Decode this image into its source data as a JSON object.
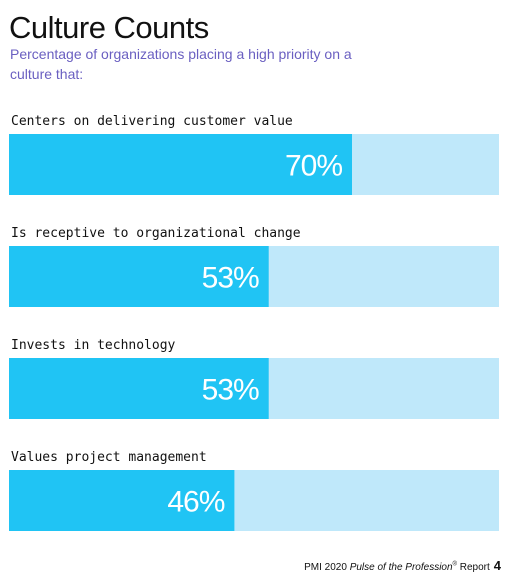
{
  "title": "Culture Counts",
  "subtitle": "Percentage of organizations placing a high priority on a culture that:",
  "colors": {
    "bar_fill": "#20c4f4",
    "bar_track": "#bfe8fa",
    "subtitle": "#6a5fc1",
    "value_text": "#ffffff"
  },
  "chart_data": {
    "type": "bar",
    "orientation": "horizontal",
    "title": "Culture Counts",
    "subtitle": "Percentage of organizations placing a high priority on a culture that:",
    "categories": [
      "Centers on delivering customer value",
      "Is receptive to organizational change",
      "Invests in technology",
      "Values project management"
    ],
    "values": [
      70,
      53,
      53,
      46
    ],
    "value_labels": [
      "70%",
      "53%",
      "53%",
      "46%"
    ],
    "xlim": [
      0,
      100
    ],
    "grid": false,
    "legend": "none"
  },
  "footer": {
    "prefix": "PMI 2020 ",
    "publication": "Pulse of the Profession",
    "registered": "®",
    "suffix": " Report",
    "page": "4"
  }
}
